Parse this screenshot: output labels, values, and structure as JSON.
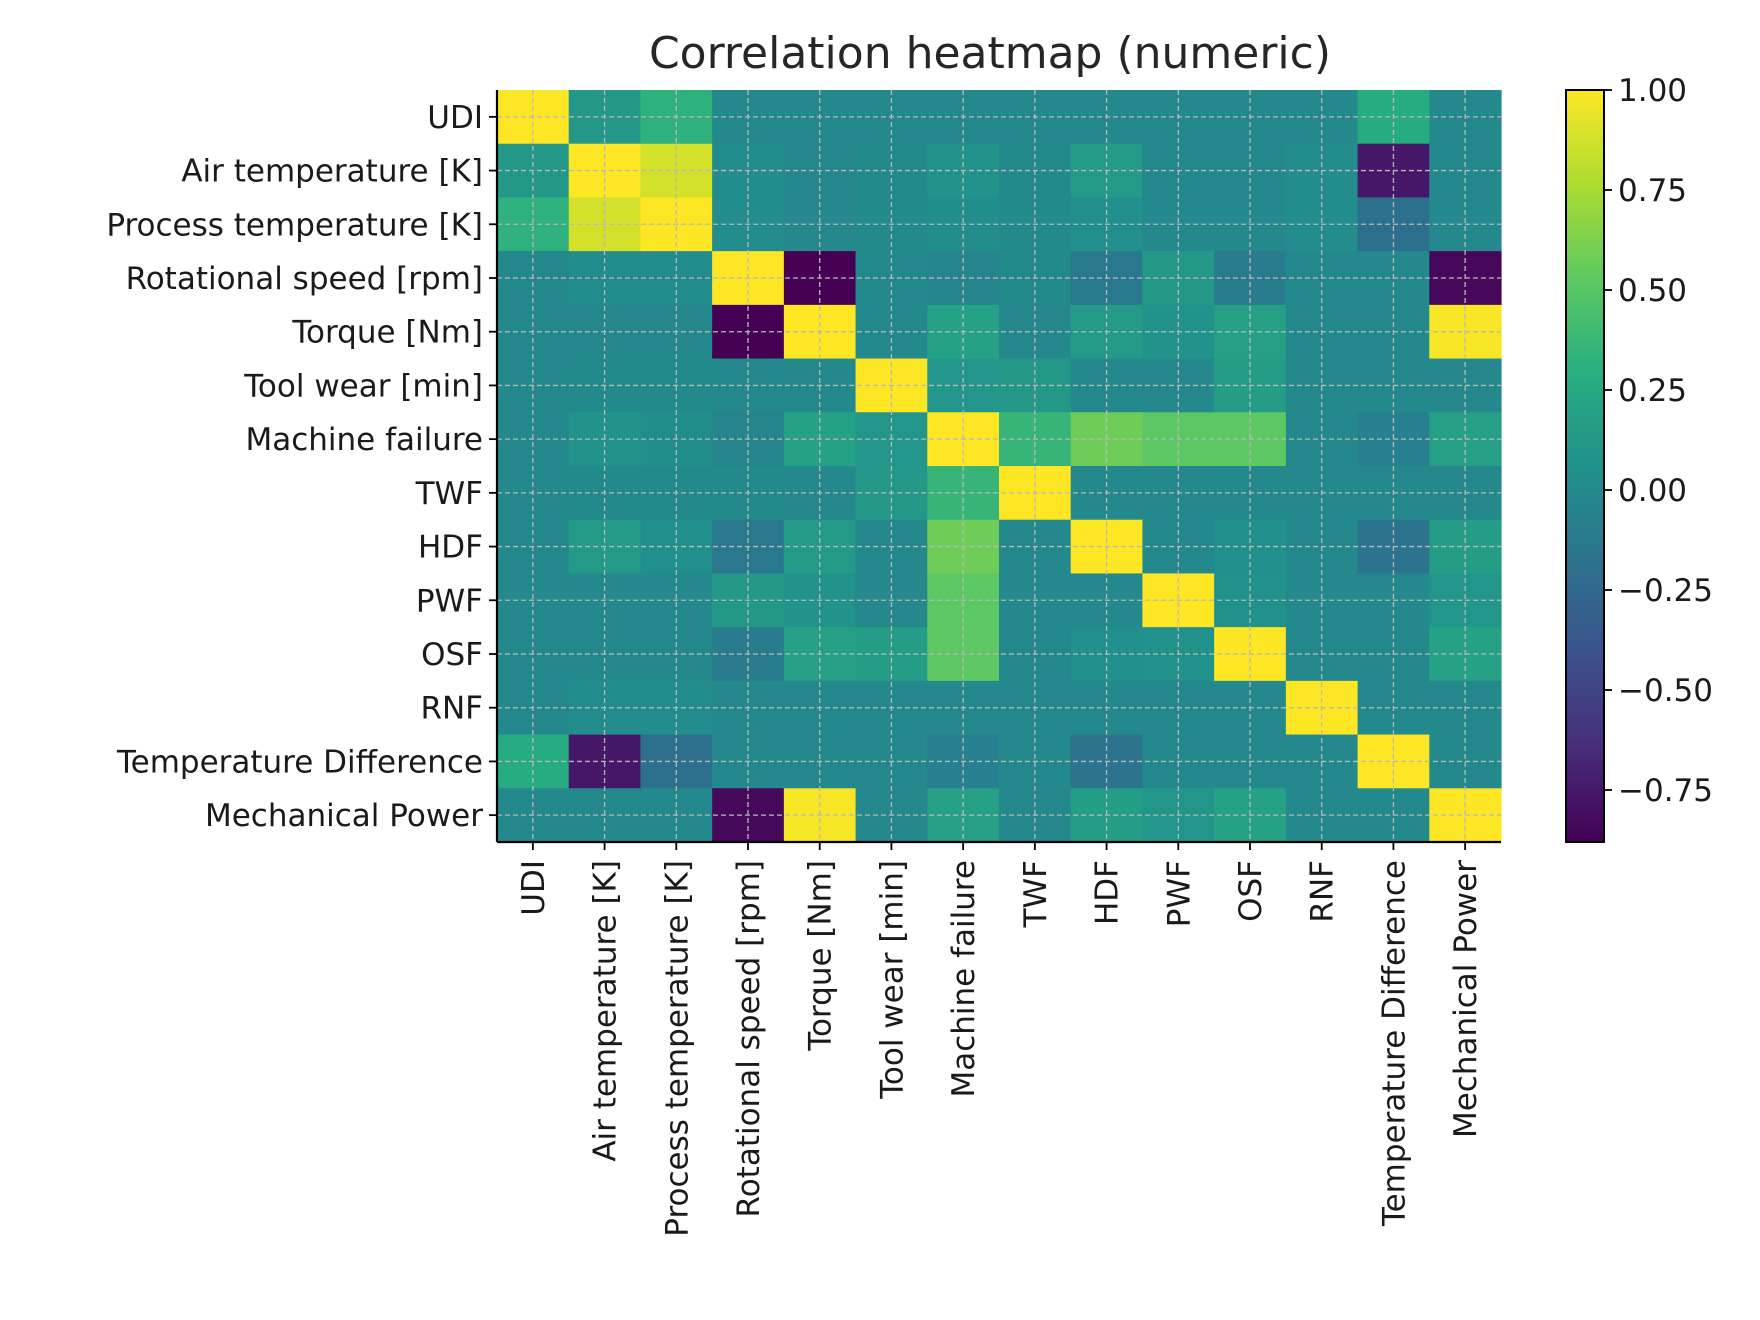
{
  "chart_data": {
    "type": "heatmap",
    "title": "Correlation heatmap (numeric)",
    "xlabel": "",
    "ylabel": "",
    "labels": [
      "UDI",
      "Air temperature [K]",
      "Process temperature [K]",
      "Rotational speed [rpm]",
      "Torque [Nm]",
      "Tool wear [min]",
      "Machine failure",
      "TWF",
      "HDF",
      "PWF",
      "OSF",
      "RNF",
      "Temperature Difference",
      "Mechanical Power"
    ],
    "matrix": [
      [
        1.0,
        0.12,
        0.32,
        0.0,
        0.0,
        0.0,
        0.0,
        0.0,
        0.0,
        0.0,
        0.0,
        0.0,
        0.27,
        0.0
      ],
      [
        0.12,
        1.0,
        0.88,
        0.02,
        -0.01,
        0.01,
        0.08,
        0.01,
        0.14,
        0.0,
        0.0,
        0.02,
        -0.76,
        0.0
      ],
      [
        0.32,
        0.88,
        1.0,
        0.02,
        -0.01,
        0.01,
        0.04,
        0.01,
        0.05,
        0.0,
        0.0,
        0.02,
        -0.19,
        0.0
      ],
      [
        0.0,
        0.02,
        0.02,
        1.0,
        -0.88,
        0.0,
        -0.04,
        0.01,
        -0.12,
        0.12,
        -0.1,
        0.0,
        0.0,
        -0.84
      ],
      [
        0.0,
        -0.01,
        -0.01,
        -0.88,
        1.0,
        0.0,
        0.19,
        -0.01,
        0.14,
        0.08,
        0.18,
        0.0,
        0.0,
        0.98
      ],
      [
        0.0,
        0.01,
        0.01,
        0.0,
        0.0,
        1.0,
        0.1,
        0.12,
        0.0,
        -0.01,
        0.16,
        0.0,
        0.0,
        -0.01
      ],
      [
        0.0,
        0.08,
        0.04,
        -0.04,
        0.19,
        0.1,
        1.0,
        0.36,
        0.58,
        0.52,
        0.53,
        0.0,
        -0.07,
        0.18
      ],
      [
        0.0,
        0.01,
        0.01,
        0.01,
        -0.01,
        0.12,
        0.36,
        1.0,
        0.0,
        0.0,
        0.0,
        0.0,
        0.0,
        -0.01
      ],
      [
        0.0,
        0.14,
        0.05,
        -0.12,
        0.14,
        0.0,
        0.58,
        0.0,
        1.0,
        0.0,
        0.05,
        0.0,
        -0.17,
        0.16
      ],
      [
        0.0,
        0.0,
        0.0,
        0.12,
        0.08,
        -0.01,
        0.52,
        0.0,
        0.0,
        1.0,
        0.07,
        0.0,
        0.0,
        0.1
      ],
      [
        0.0,
        0.0,
        0.0,
        -0.1,
        0.18,
        0.16,
        0.53,
        0.0,
        0.05,
        0.07,
        1.0,
        0.0,
        0.0,
        0.19
      ],
      [
        0.0,
        0.02,
        0.02,
        0.0,
        0.0,
        0.0,
        0.0,
        0.0,
        0.0,
        0.0,
        0.0,
        1.0,
        0.0,
        0.0
      ],
      [
        0.27,
        -0.76,
        -0.19,
        0.0,
        0.0,
        0.0,
        -0.07,
        0.0,
        -0.17,
        0.0,
        0.0,
        0.0,
        1.0,
        0.0
      ],
      [
        0.0,
        0.0,
        0.0,
        -0.84,
        0.98,
        -0.01,
        0.18,
        -0.01,
        0.16,
        0.1,
        0.19,
        0.0,
        0.0,
        1.0
      ]
    ],
    "colormap": "viridis",
    "vmin": -0.88,
    "vmax": 1.0,
    "colorbar_ticks": [
      "1.00",
      "0.75",
      "0.50",
      "0.25",
      "0.00",
      "−0.25",
      "−0.50",
      "−0.75"
    ],
    "colorbar_tick_values": [
      1.0,
      0.75,
      0.5,
      0.25,
      0.0,
      -0.25,
      -0.5,
      -0.75
    ],
    "grid": true,
    "legend": "colorbar-right"
  }
}
